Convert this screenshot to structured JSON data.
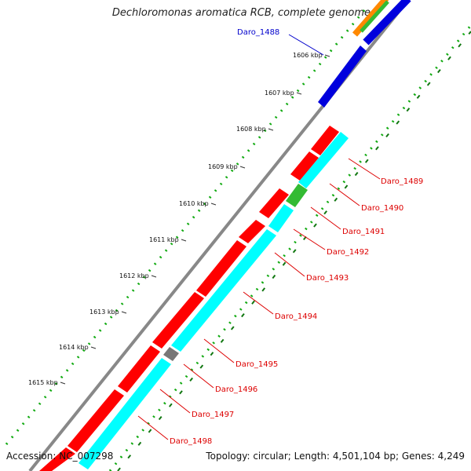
{
  "title": "Dechloromonas aromatica RCB, complete genome",
  "footer": {
    "accession": "Accession: NC_007298",
    "topology": "Topology: circular",
    "length": "Length: 4,501,104 bp",
    "genes": "Genes: 4,249"
  },
  "colors": {
    "forward_gene": "#ff0000",
    "reverse_gene": "#00ffff",
    "highlight_gene": "#0000dd",
    "rna_gene": "#33bb33",
    "pseudo_gene": "#777777",
    "backbone": "#888888",
    "gc_dots": "#11aa11",
    "label_red": "#dd0000",
    "label_blue": "#0000cc"
  },
  "ticks": [
    "1606 kbp",
    "1607 kbp",
    "1608 kbp",
    "1609 kbp",
    "1610 kbp",
    "1611 kbp",
    "1612 kbp",
    "1613 kbp",
    "1614 kbp",
    "1615 kbp"
  ],
  "gene_labels": [
    {
      "name": "Daro_1488",
      "color": "blue"
    },
    {
      "name": "Daro_1489",
      "color": "red"
    },
    {
      "name": "Daro_1490",
      "color": "red"
    },
    {
      "name": "Daro_1491",
      "color": "red"
    },
    {
      "name": "Daro_1492",
      "color": "red"
    },
    {
      "name": "Daro_1493",
      "color": "red"
    },
    {
      "name": "Daro_1494",
      "color": "red"
    },
    {
      "name": "Daro_1495",
      "color": "red"
    },
    {
      "name": "Daro_1496",
      "color": "red"
    },
    {
      "name": "Daro_1497",
      "color": "red"
    },
    {
      "name": "Daro_1498",
      "color": "red"
    }
  ]
}
